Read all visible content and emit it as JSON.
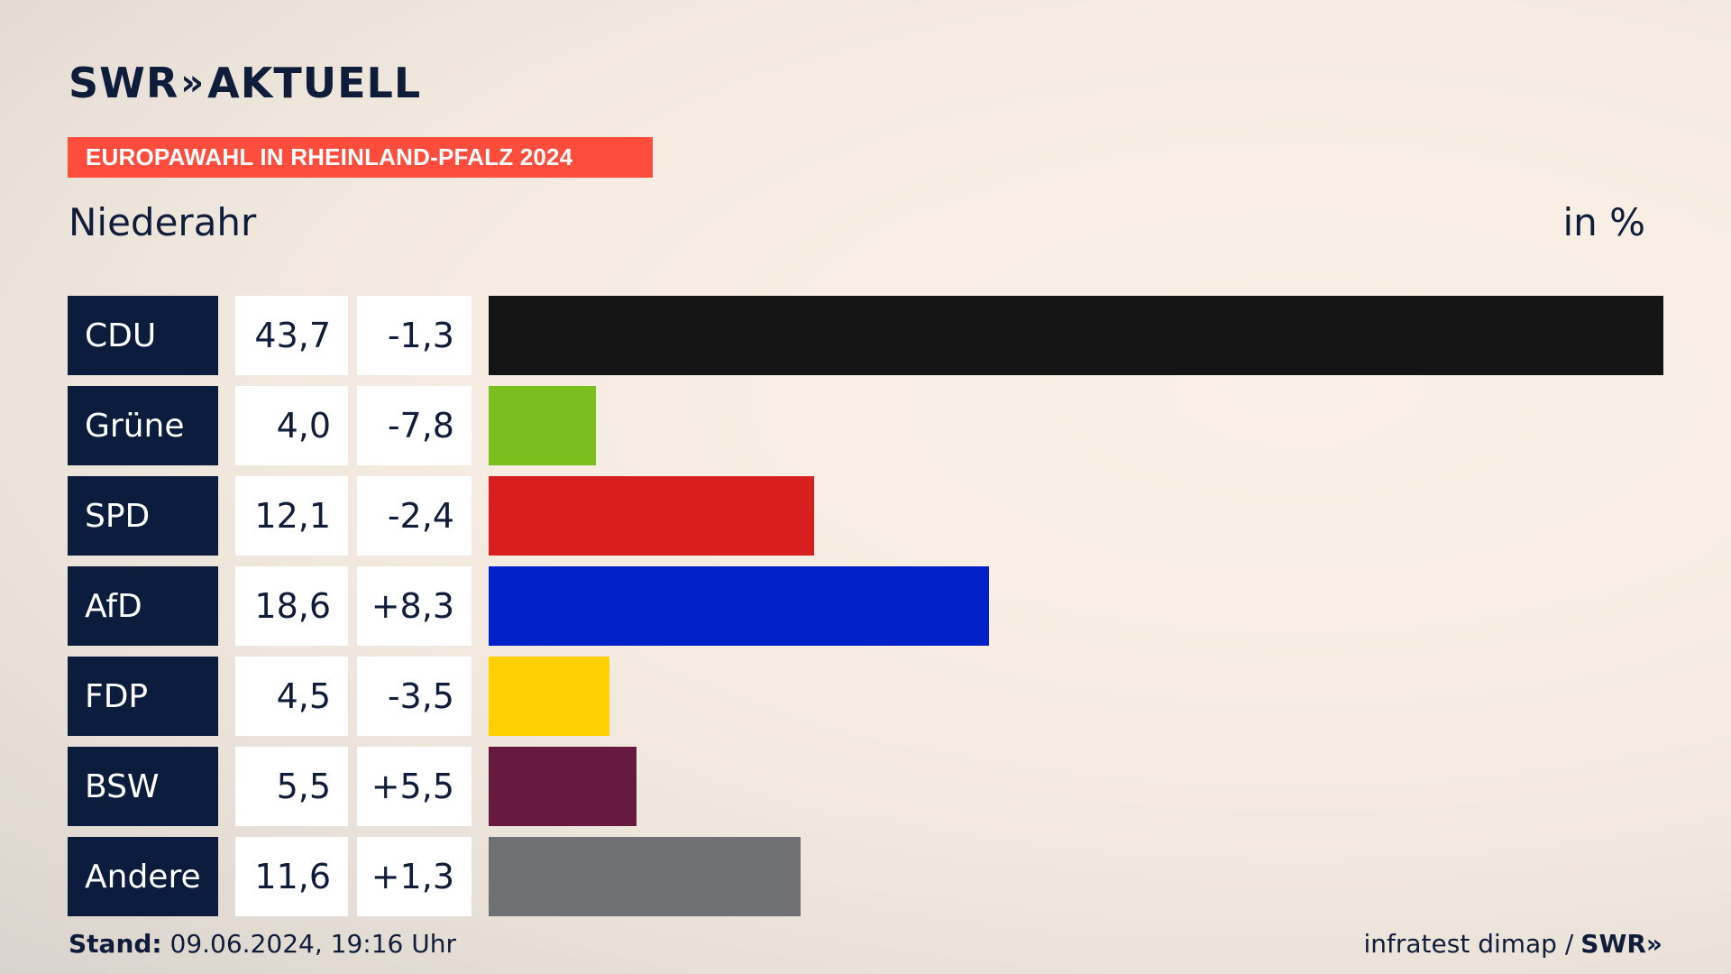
{
  "header": {
    "logo_text": "SWR",
    "logo_chevron": "»",
    "logo_suffix": "AKTUELL",
    "banner": "EUROPAWAHL IN RHEINLAND-PFALZ 2024",
    "place": "Niederahr",
    "unit": "in %"
  },
  "footer": {
    "stand_label": "Stand:",
    "stand_value": " 09.06.2024, 19:16 Uhr",
    "source": "infratest dimap /",
    "source_logo": "SWR»"
  },
  "chart_data": {
    "type": "bar",
    "orientation": "horizontal",
    "categories": [
      "CDU",
      "Grüne",
      "SPD",
      "AfD",
      "FDP",
      "BSW",
      "Andere"
    ],
    "values": [
      43.7,
      4.0,
      12.1,
      18.6,
      4.5,
      5.5,
      11.6
    ],
    "value_labels": [
      "43,7",
      "4,0",
      "12,1",
      "18,6",
      "4,5",
      "5,5",
      "11,6"
    ],
    "changes": [
      -1.3,
      -7.8,
      -2.4,
      8.3,
      -3.5,
      5.5,
      1.3
    ],
    "change_labels": [
      "-1,3",
      "-7,8",
      "-2,4",
      "+8,3",
      "-3,5",
      "+5,5",
      "+1,3"
    ],
    "colors": [
      "#141414",
      "#7bbf1e",
      "#d81f1f",
      "#0021c8",
      "#ffd000",
      "#661a3f",
      "#707173"
    ],
    "xlim": [
      0,
      43.7
    ],
    "grid": false,
    "legend": "none"
  }
}
